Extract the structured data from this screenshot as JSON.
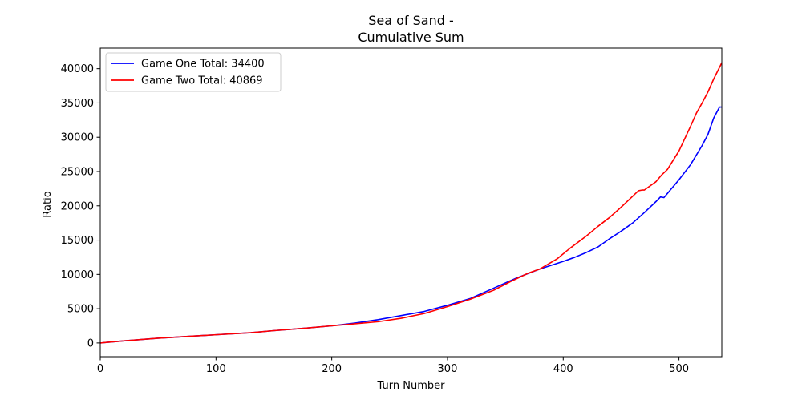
{
  "chart_data": {
    "type": "line",
    "title_lines": [
      "Sea of Sand -",
      "Cumulative Sum"
    ],
    "xlabel": "Turn Number",
    "ylabel": "Ratio",
    "xlim": [
      0,
      537
    ],
    "ylim": [
      -2000,
      43000
    ],
    "xticks": [
      0,
      100,
      200,
      300,
      400,
      500
    ],
    "yticks": [
      0,
      5000,
      10000,
      15000,
      20000,
      25000,
      30000,
      35000,
      40000
    ],
    "grid": false,
    "legend_position": "top-left",
    "series": [
      {
        "name": "Game One Total: 34400",
        "color": "#0000ff",
        "x": [
          0,
          20,
          50,
          80,
          100,
          130,
          150,
          180,
          200,
          220,
          240,
          260,
          280,
          300,
          320,
          340,
          360,
          380,
          400,
          410,
          420,
          430,
          440,
          450,
          460,
          470,
          480,
          484,
          487,
          490,
          500,
          510,
          520,
          525,
          530,
          535,
          537
        ],
        "y": [
          0,
          300,
          700,
          1000,
          1200,
          1500,
          1800,
          2200,
          2500,
          2900,
          3400,
          4000,
          4600,
          5500,
          6500,
          8000,
          9500,
          10800,
          11900,
          12500,
          13200,
          14000,
          15200,
          16300,
          17500,
          19000,
          20600,
          21300,
          21200,
          21800,
          23800,
          26000,
          28800,
          30400,
          32800,
          34400,
          34400
        ]
      },
      {
        "name": "Game Two Total: 40869",
        "color": "#ff0000",
        "x": [
          0,
          20,
          50,
          80,
          100,
          130,
          150,
          180,
          200,
          220,
          240,
          260,
          280,
          300,
          320,
          340,
          355,
          370,
          380,
          395,
          405,
          420,
          430,
          440,
          450,
          460,
          465,
          468,
          470,
          480,
          485,
          490,
          500,
          510,
          515,
          520,
          525,
          530,
          537
        ],
        "y": [
          0,
          300,
          700,
          1000,
          1200,
          1500,
          1800,
          2200,
          2500,
          2800,
          3100,
          3600,
          4300,
          5300,
          6400,
          7700,
          9000,
          10200,
          10800,
          12300,
          13700,
          15600,
          17000,
          18300,
          19800,
          21400,
          22200,
          22300,
          22300,
          23500,
          24500,
          25300,
          28000,
          31600,
          33500,
          35000,
          36600,
          38500,
          40869
        ]
      }
    ]
  }
}
